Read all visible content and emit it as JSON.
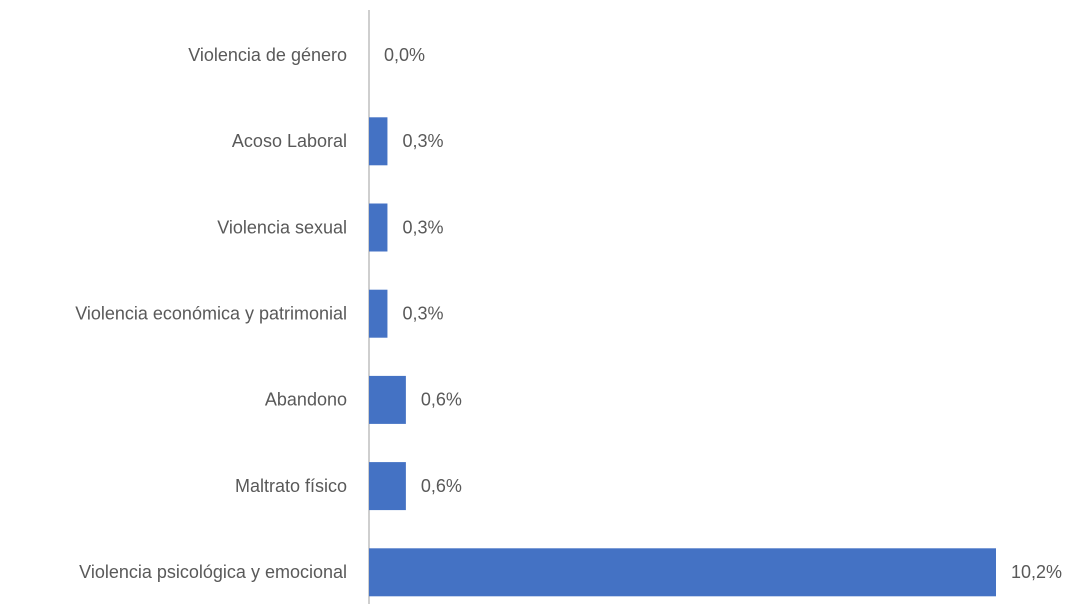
{
  "chart_data": {
    "type": "bar",
    "orientation": "horizontal",
    "categories": [
      "Violencia de género",
      "Acoso Laboral",
      "Violencia sexual",
      "Violencia económica y patrimonial",
      "Abandono",
      "Maltrato físico",
      "Violencia psicológica y emocional"
    ],
    "values": [
      0.0,
      0.3,
      0.3,
      0.3,
      0.6,
      0.6,
      10.2
    ],
    "value_labels": [
      "0,0%",
      "0,3%",
      "0,3%",
      "0,3%",
      "0,6%",
      "0,6%",
      "10,2%"
    ],
    "color": "#4472c4"
  }
}
